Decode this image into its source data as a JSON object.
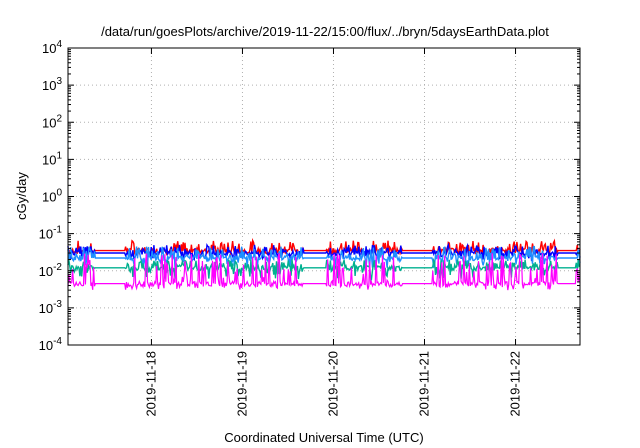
{
  "chart_data": {
    "type": "line",
    "title": "/data/run/goesPlots/archive/2019-11-22/15:00/flux/../bryn/5daysEarthData.plot",
    "xlabel": "Coordinated Universal Time (UTC)",
    "ylabel": "cGy/day",
    "yscale": "log",
    "ylim": [
      0.0001,
      10000
    ],
    "y_ticks": [
      {
        "exp": -4,
        "value": 0.0001,
        "base": "10",
        "sup": "-4"
      },
      {
        "exp": -3,
        "value": 0.001,
        "base": "10",
        "sup": "-3"
      },
      {
        "exp": -2,
        "value": 0.01,
        "base": "10",
        "sup": "-2"
      },
      {
        "exp": -1,
        "value": 0.1,
        "base": "10",
        "sup": "-1"
      },
      {
        "exp": 0,
        "value": 1,
        "base": "10",
        "sup": "0"
      },
      {
        "exp": 1,
        "value": 10,
        "base": "10",
        "sup": "1"
      },
      {
        "exp": 2,
        "value": 100,
        "base": "10",
        "sup": "2"
      },
      {
        "exp": 3,
        "value": 1000,
        "base": "10",
        "sup": "3"
      },
      {
        "exp": 4,
        "value": 10000,
        "base": "10",
        "sup": "4"
      }
    ],
    "xlim": [
      "2019-11-17 02:00",
      "2019-11-22 17:00"
    ],
    "x_ticks": [
      {
        "value": "2019-11-18",
        "label": "2019-11-18"
      },
      {
        "value": "2019-11-19",
        "label": "2019-11-19"
      },
      {
        "value": "2019-11-20",
        "label": "2019-11-20"
      },
      {
        "value": "2019-11-21",
        "label": "2019-11-21"
      },
      {
        "value": "2019-11-22",
        "label": "2019-11-22"
      }
    ],
    "grid": true,
    "series": [
      {
        "color": "#ff0000",
        "base": 0.035,
        "spike_max": 0.065,
        "dip_min": 0.028
      },
      {
        "color": "#0000ff",
        "base": 0.03,
        "spike_max": 0.05,
        "dip_min": 0.02
      },
      {
        "color": "#1e90ff",
        "base": 0.022,
        "spike_max": 0.045,
        "dip_min": 0.012
      },
      {
        "color": "#00b090",
        "base": 0.012,
        "spike_max": 0.02,
        "dip_min": 0.006
      },
      {
        "color": "#ff00ff",
        "base": 0.0045,
        "spike_max": 0.03,
        "dip_min": 0.003
      }
    ],
    "gaps": [
      {
        "start": "2019-11-17 09:00",
        "end": "2019-11-17 17:00"
      },
      {
        "start": "2019-11-19 16:00",
        "end": "2019-11-19 22:00"
      },
      {
        "start": "2019-11-20 18:00",
        "end": "2019-11-21 02:00"
      },
      {
        "start": "2019-11-22 11:00",
        "end": "2019-11-22 16:00"
      }
    ]
  }
}
